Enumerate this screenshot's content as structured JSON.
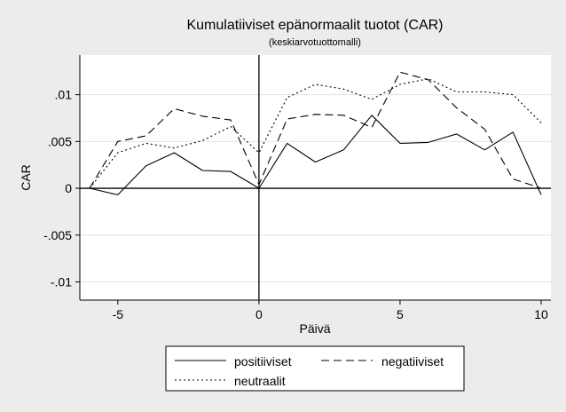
{
  "chart_data": {
    "type": "line",
    "title": "Kumulatiiviset epänormaalit tuotot (CAR)",
    "subtitle": "(keskiarvotuottomalli)",
    "xlabel": "Päivä",
    "ylabel": "CAR",
    "xlim": [
      -6,
      10
    ],
    "ylim": [
      -0.011,
      0.013
    ],
    "x_ticks": [
      -5,
      0,
      5,
      10
    ],
    "x_tick_labels": [
      "-5",
      "0",
      "5",
      "10"
    ],
    "y_ticks": [
      -0.01,
      -0.005,
      0,
      0.005,
      0.01
    ],
    "y_tick_labels": [
      "-.01",
      "-.005",
      "0",
      ".005",
      ".01"
    ],
    "grid": "horizontal",
    "legend_position": "bottom",
    "x": [
      -6,
      -5,
      -4,
      -3,
      -2,
      -1,
      0,
      1,
      2,
      3,
      4,
      5,
      6,
      7,
      8,
      9,
      10
    ],
    "series": [
      {
        "name": "positiiviset",
        "dash": "solid",
        "color": "#000000",
        "values": [
          0.0,
          -0.0007,
          0.0024,
          0.0038,
          0.0019,
          0.0018,
          0.0,
          0.0048,
          0.0028,
          0.0041,
          0.0078,
          0.0048,
          0.0049,
          0.0058,
          0.0041,
          0.006,
          -0.0007
        ]
      },
      {
        "name": "negatiiviset",
        "dash": "dashed",
        "color": "#000000",
        "values": [
          0.0,
          0.005,
          0.0056,
          0.0085,
          0.0077,
          0.0073,
          0.0004,
          0.0074,
          0.0079,
          0.0078,
          0.0065,
          0.0124,
          0.0116,
          0.0086,
          0.0063,
          0.001,
          0.0
        ]
      },
      {
        "name": "neutraalit",
        "dash": "dotted",
        "color": "#000000",
        "values": [
          0.0,
          0.0038,
          0.0048,
          0.0043,
          0.0051,
          0.0066,
          0.0038,
          0.0097,
          0.0111,
          0.0106,
          0.0095,
          0.0111,
          0.0117,
          0.0103,
          0.0103,
          0.01,
          0.007
        ]
      }
    ]
  }
}
